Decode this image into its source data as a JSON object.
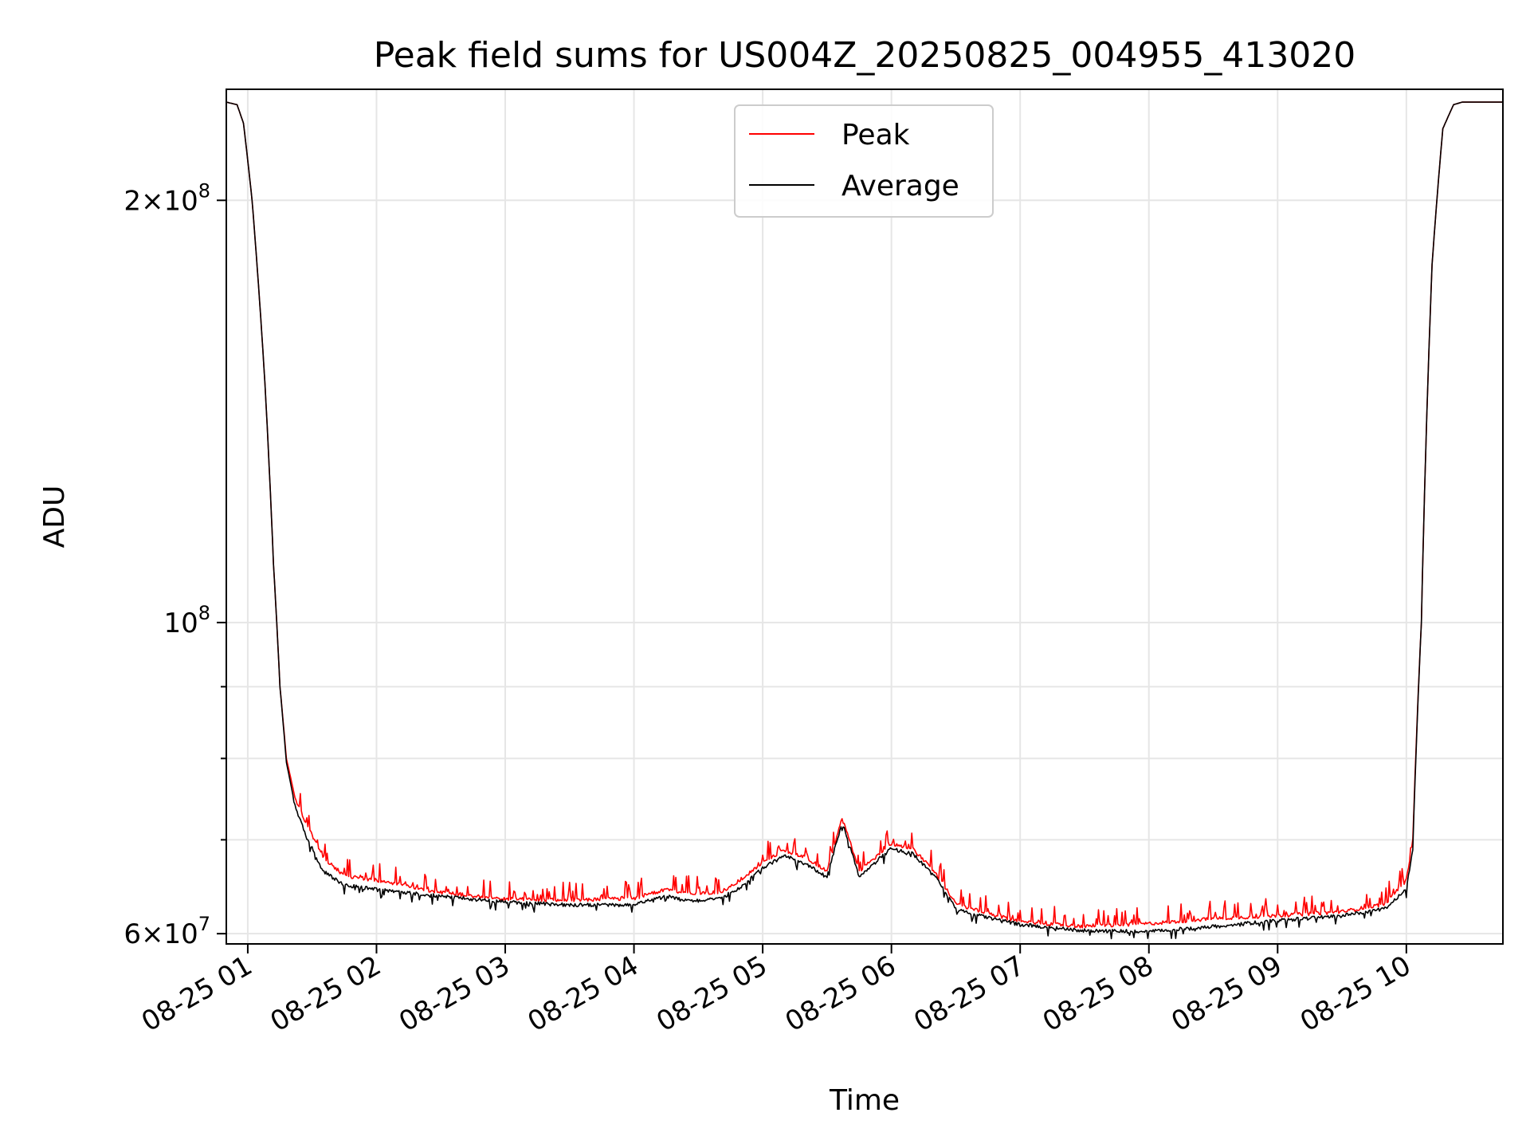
{
  "chart_data": {
    "type": "line",
    "title": "Peak field sums for US004Z_20250825_004955_413020",
    "xlabel": "Time",
    "ylabel": "ADU",
    "y_scale": "log",
    "ylim": [
      59000000,
      240000000
    ],
    "xlim": [
      "2025-08-25 00:50",
      "2025-08-25 10:45"
    ],
    "grid": true,
    "legend_position": "upper center",
    "x_tick_labels": [
      "08-25 01",
      "08-25 02",
      "08-25 03",
      "08-25 04",
      "08-25 05",
      "08-25 06",
      "08-25 07",
      "08-25 08",
      "08-25 09",
      "08-25 10"
    ],
    "y_tick_labels": [
      {
        "value": 60000000,
        "mantissa": "6",
        "exponent": "7"
      },
      {
        "value": 100000000,
        "mantissa": "",
        "exponent": "8"
      },
      {
        "value": 200000000,
        "mantissa": "2",
        "exponent": "8"
      }
    ],
    "series": [
      {
        "name": "Peak",
        "color": "#ff0000",
        "x": [
          "2025-08-25 00:50",
          "2025-08-25 00:55",
          "2025-08-25 00:58",
          "2025-08-25 01:02",
          "2025-08-25 01:08",
          "2025-08-25 01:12",
          "2025-08-25 01:15",
          "2025-08-25 01:18",
          "2025-08-25 01:22",
          "2025-08-25 01:27",
          "2025-08-25 01:35",
          "2025-08-25 01:45",
          "2025-08-25 02:00",
          "2025-08-25 02:30",
          "2025-08-25 03:00",
          "2025-08-25 03:30",
          "2025-08-25 04:00",
          "2025-08-25 04:15",
          "2025-08-25 04:25",
          "2025-08-25 04:40",
          "2025-08-25 04:50",
          "2025-08-25 05:00",
          "2025-08-25 05:10",
          "2025-08-25 05:20",
          "2025-08-25 05:30",
          "2025-08-25 05:37",
          "2025-08-25 05:45",
          "2025-08-25 05:55",
          "2025-08-25 06:00",
          "2025-08-25 06:10",
          "2025-08-25 06:20",
          "2025-08-25 06:30",
          "2025-08-25 06:45",
          "2025-08-25 07:00",
          "2025-08-25 07:30",
          "2025-08-25 08:00",
          "2025-08-25 08:30",
          "2025-08-25 09:00",
          "2025-08-25 09:30",
          "2025-08-25 09:50",
          "2025-08-25 10:00",
          "2025-08-25 10:03",
          "2025-08-25 10:07",
          "2025-08-25 10:12",
          "2025-08-25 10:17",
          "2025-08-25 10:22",
          "2025-08-25 10:26",
          "2025-08-25 10:45"
        ],
        "y": [
          235000000,
          234000000,
          227000000,
          200000000,
          148000000,
          110000000,
          90000000,
          80000000,
          75000000,
          72000000,
          68000000,
          66000000,
          65500000,
          64200000,
          63500000,
          63400000,
          63600000,
          64500000,
          64100000,
          64200000,
          65500000,
          67500000,
          68800000,
          68000000,
          66500000,
          72500000,
          66500000,
          68500000,
          69500000,
          69000000,
          66500000,
          63000000,
          62000000,
          61200000,
          60700000,
          61000000,
          61500000,
          61800000,
          62200000,
          63000000,
          65500000,
          70000000,
          100000000,
          180000000,
          225000000,
          234000000,
          235000000,
          235000000
        ]
      },
      {
        "name": "Average",
        "color": "#000000",
        "x": [
          "2025-08-25 00:50",
          "2025-08-25 00:55",
          "2025-08-25 00:58",
          "2025-08-25 01:02",
          "2025-08-25 01:08",
          "2025-08-25 01:12",
          "2025-08-25 01:15",
          "2025-08-25 01:18",
          "2025-08-25 01:22",
          "2025-08-25 01:27",
          "2025-08-25 01:35",
          "2025-08-25 01:45",
          "2025-08-25 02:00",
          "2025-08-25 02:30",
          "2025-08-25 03:00",
          "2025-08-25 03:30",
          "2025-08-25 04:00",
          "2025-08-25 04:15",
          "2025-08-25 04:25",
          "2025-08-25 04:40",
          "2025-08-25 04:50",
          "2025-08-25 05:00",
          "2025-08-25 05:10",
          "2025-08-25 05:20",
          "2025-08-25 05:30",
          "2025-08-25 05:37",
          "2025-08-25 05:45",
          "2025-08-25 05:55",
          "2025-08-25 06:00",
          "2025-08-25 06:10",
          "2025-08-25 06:20",
          "2025-08-25 06:30",
          "2025-08-25 06:45",
          "2025-08-25 07:00",
          "2025-08-25 07:30",
          "2025-08-25 08:00",
          "2025-08-25 08:30",
          "2025-08-25 09:00",
          "2025-08-25 09:30",
          "2025-08-25 09:50",
          "2025-08-25 10:00",
          "2025-08-25 10:03",
          "2025-08-25 10:07",
          "2025-08-25 10:12",
          "2025-08-25 10:17",
          "2025-08-25 10:22",
          "2025-08-25 10:26",
          "2025-08-25 10:45"
        ],
        "y": [
          235000000,
          234000000,
          227000000,
          200000000,
          148000000,
          110000000,
          90000000,
          79500000,
          74000000,
          70500000,
          66500000,
          65000000,
          64500000,
          63800000,
          63200000,
          62900000,
          62900000,
          63800000,
          63300000,
          63500000,
          64800000,
          66800000,
          68200000,
          67300000,
          65800000,
          72000000,
          65800000,
          68000000,
          69000000,
          68400000,
          66000000,
          62500000,
          61600000,
          60900000,
          60300000,
          60200000,
          60700000,
          61300000,
          61800000,
          62500000,
          64500000,
          69000000,
          100000000,
          180000000,
          225000000,
          234000000,
          235000000,
          235000000
        ]
      }
    ]
  }
}
